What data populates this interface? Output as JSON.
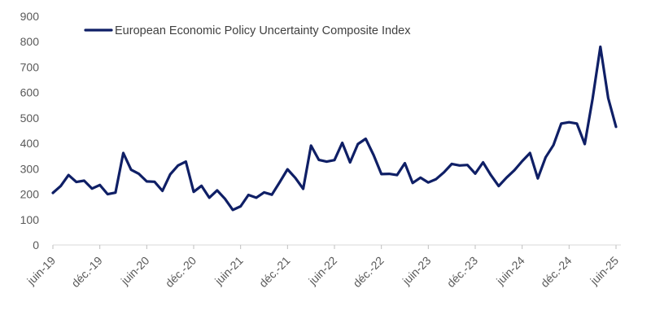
{
  "chart_data": {
    "type": "line",
    "title": "",
    "xlabel": "",
    "ylabel": "",
    "ylim": [
      0,
      900
    ],
    "yticks": [
      0,
      100,
      200,
      300,
      400,
      500,
      600,
      700,
      800,
      900
    ],
    "grid": false,
    "legend_position": "top-left",
    "x_tick_labels": [
      "juin-19",
      "déc.-19",
      "juin-20",
      "déc.-20",
      "juin-21",
      "déc.-21",
      "juin-22",
      "déc.-22",
      "juin-23",
      "déc.-23",
      "juin-24",
      "déc.-24",
      "juin-25"
    ],
    "x": [
      "2019-06",
      "2019-07",
      "2019-08",
      "2019-09",
      "2019-10",
      "2019-11",
      "2019-12",
      "2020-01",
      "2020-02",
      "2020-03",
      "2020-04",
      "2020-05",
      "2020-06",
      "2020-07",
      "2020-08",
      "2020-09",
      "2020-10",
      "2020-11",
      "2020-12",
      "2021-01",
      "2021-02",
      "2021-03",
      "2021-04",
      "2021-05",
      "2021-06",
      "2021-07",
      "2021-08",
      "2021-09",
      "2021-10",
      "2021-11",
      "2021-12",
      "2022-01",
      "2022-02",
      "2022-03",
      "2022-04",
      "2022-05",
      "2022-06",
      "2022-07",
      "2022-08",
      "2022-09",
      "2022-10",
      "2022-11",
      "2022-12",
      "2023-01",
      "2023-02",
      "2023-03",
      "2023-04",
      "2023-05",
      "2023-06",
      "2023-07",
      "2023-08",
      "2023-09",
      "2023-10",
      "2023-11",
      "2023-12",
      "2024-01",
      "2024-02",
      "2024-03",
      "2024-04",
      "2024-05",
      "2024-06",
      "2024-07",
      "2024-08",
      "2024-09",
      "2024-10",
      "2024-11",
      "2024-12",
      "2025-01",
      "2025-02",
      "2025-03",
      "2025-04",
      "2025-05",
      "2025-06"
    ],
    "series": [
      {
        "name": "European Economic Policy Uncertainty Composite Index",
        "color": "#0f1f66",
        "values": [
          205,
          232,
          275,
          248,
          253,
          222,
          236,
          200,
          206,
          362,
          296,
          280,
          250,
          249,
          213,
          278,
          313,
          328,
          209,
          233,
          186,
          215,
          182,
          138,
          152,
          197,
          186,
          207,
          198,
          247,
          298,
          264,
          221,
          391,
          335,
          328,
          334,
          402,
          325,
          397,
          418,
          354,
          279,
          280,
          275,
          322,
          244,
          265,
          246,
          259,
          286,
          319,
          313,
          315,
          281,
          325,
          275,
          232,
          265,
          294,
          330,
          362,
          262,
          345,
          393,
          478,
          483,
          478,
          397,
          575,
          780,
          578,
          465
        ]
      }
    ]
  }
}
